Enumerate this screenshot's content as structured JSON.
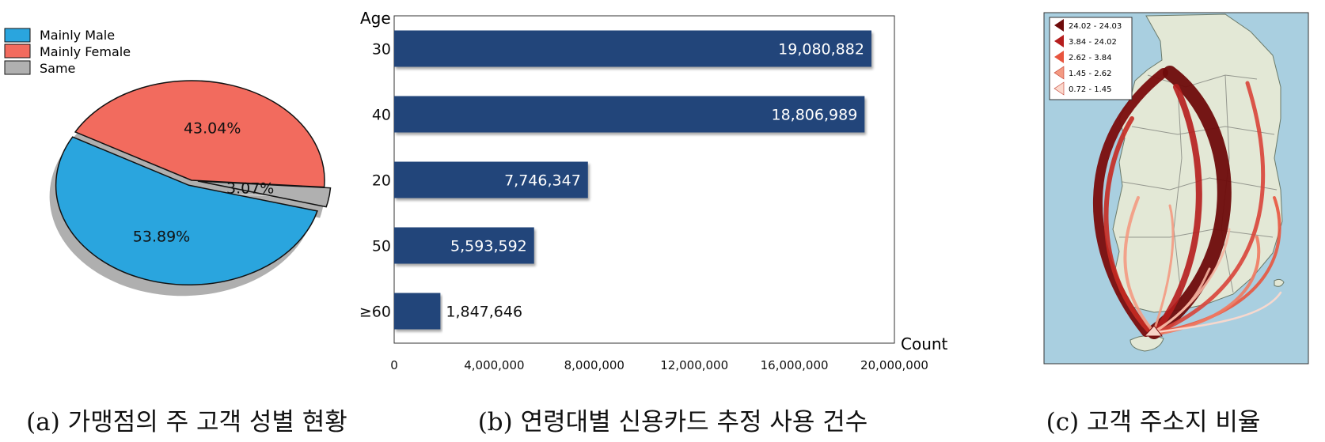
{
  "chart_data": [
    {
      "type": "pie",
      "caption": "(a) 가맹점의 주 고객 성별 현황",
      "legend": [
        "Mainly Male",
        "Mainly Female",
        "Same"
      ],
      "legend_position": "top-left",
      "slices": [
        {
          "name": "Mainly Male",
          "value": 53.89,
          "label": "53.89%"
        },
        {
          "name": "Mainly Female",
          "value": 43.04,
          "label": "43.04%"
        },
        {
          "name": "Same",
          "value": 3.07,
          "label": "3.07%"
        }
      ],
      "colors": {
        "Mainly Male": "#2aa5de",
        "Mainly Female": "#f26b5e",
        "Same": "#b0b0b0"
      }
    },
    {
      "type": "bar",
      "orientation": "horizontal",
      "caption": "(b) 연령대별 신용카드 추정 사용 건수",
      "ylabel": "Age",
      "xlabel": "Count",
      "categories": [
        "30",
        "40",
        "20",
        "50",
        "≥60"
      ],
      "values": [
        19080882,
        18806989,
        7746347,
        5593592,
        1847646
      ],
      "value_labels": [
        "19,080,882",
        "18,806,989",
        "7,746,347",
        "5,593,592",
        "1,847,646"
      ],
      "xlim": [
        0,
        20000000
      ],
      "xticks": [
        0,
        4000000,
        8000000,
        12000000,
        16000000,
        20000000
      ],
      "xtick_labels": [
        "0",
        "4,000,000",
        "8,000,000",
        "12,000,000",
        "16,000,000",
        "20,000,000"
      ],
      "bar_color": "#22457a"
    },
    {
      "type": "map",
      "caption": "(c) 고객 주소지 비율",
      "legend": [
        "24.02 - 24.03",
        "3.84 - 24.02",
        "2.62 - 3.84",
        "1.45 - 2.62",
        "0.72 - 1.45"
      ],
      "legend_colors": [
        "#6e0b0b",
        "#b51d1d",
        "#e8553f",
        "#f39a82",
        "#fbd8cc"
      ]
    }
  ]
}
